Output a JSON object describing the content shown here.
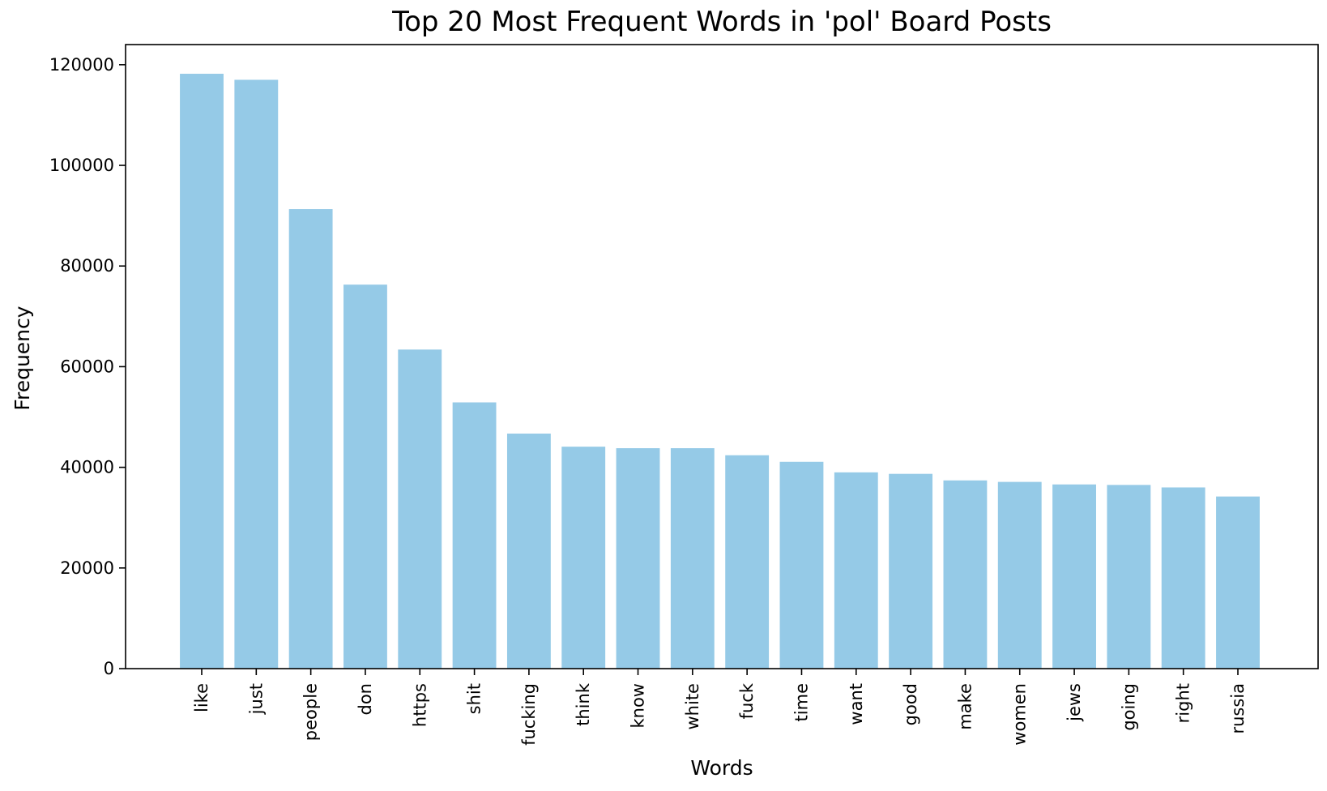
{
  "chart_data": {
    "type": "bar",
    "title": "Top 20 Most Frequent Words in 'pol' Board Posts",
    "xlabel": "Words",
    "ylabel": "Frequency",
    "ylim": [
      0,
      124000
    ],
    "yticks": [
      0,
      20000,
      40000,
      60000,
      80000,
      100000,
      120000
    ],
    "grid": false,
    "bar_color": "#95cae7",
    "categories": [
      "like",
      "just",
      "people",
      "don",
      "https",
      "shit",
      "fucking",
      "think",
      "know",
      "white",
      "fuck",
      "time",
      "want",
      "good",
      "make",
      "women",
      "jews",
      "going",
      "right",
      "russia"
    ],
    "values": [
      118200,
      117000,
      91300,
      76300,
      63400,
      52900,
      46700,
      44100,
      43800,
      43800,
      42400,
      41100,
      39000,
      38700,
      37400,
      37100,
      36600,
      36500,
      36000,
      34200
    ]
  }
}
